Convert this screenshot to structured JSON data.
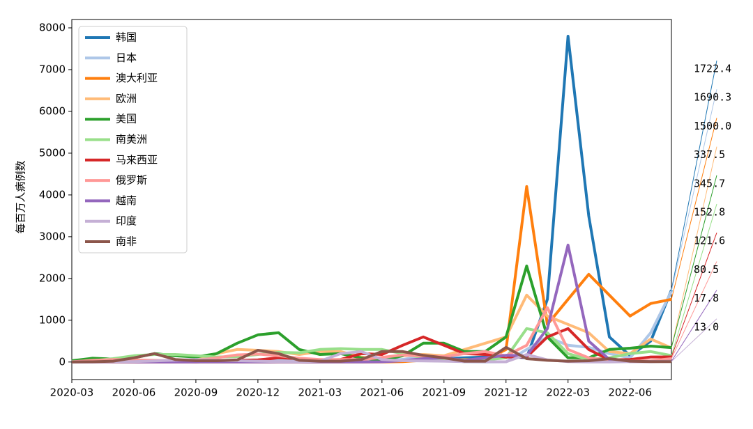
{
  "chart_data": {
    "type": "line",
    "y_label": "每百万人病例数",
    "x": [
      "2020-03",
      "2020-04",
      "2020-05",
      "2020-06",
      "2020-07",
      "2020-08",
      "2020-09",
      "2020-10",
      "2020-11",
      "2020-12",
      "2021-01",
      "2021-02",
      "2021-03",
      "2021-04",
      "2021-05",
      "2021-06",
      "2021-07",
      "2021-08",
      "2021-09",
      "2021-10",
      "2021-11",
      "2021-12",
      "2022-01",
      "2022-02",
      "2022-03",
      "2022-04",
      "2022-05",
      "2022-06",
      "2022-07",
      "2022-08"
    ],
    "xticks": [
      "2020-03",
      "2020-06",
      "2020-09",
      "2020-12",
      "2021-03",
      "2021-06",
      "2021-09",
      "2021-12",
      "2022-03",
      "2022-06"
    ],
    "ylim": [
      -420,
      8200
    ],
    "yticks": [
      0,
      1000,
      2000,
      3000,
      4000,
      5000,
      6000,
      7000,
      8000
    ],
    "legend": "upper left",
    "series": [
      {
        "name": "韩国",
        "color": "#1f77b4",
        "values": [
          30,
          10,
          5,
          5,
          5,
          5,
          10,
          10,
          20,
          40,
          30,
          20,
          20,
          30,
          30,
          30,
          60,
          70,
          80,
          100,
          120,
          130,
          100,
          1500,
          7800,
          3500,
          600,
          150,
          500,
          1722.4
        ],
        "end_label": {
          "value": 1722.4,
          "label": "1722.4"
        }
      },
      {
        "name": "日本",
        "color": "#aec7e8",
        "values": [
          2,
          10,
          5,
          2,
          15,
          25,
          10,
          10,
          20,
          30,
          40,
          15,
          10,
          25,
          40,
          10,
          60,
          150,
          60,
          5,
          2,
          5,
          300,
          600,
          400,
          350,
          200,
          100,
          700,
          1690.3
        ],
        "end_label": {
          "value": 1690.3,
          "label": "1690.3"
        }
      },
      {
        "name": "澳大利亚",
        "color": "#ff7f0e",
        "values": [
          10,
          5,
          1,
          1,
          10,
          15,
          2,
          1,
          1,
          1,
          1,
          1,
          1,
          1,
          1,
          2,
          10,
          40,
          50,
          60,
          50,
          300,
          4200,
          900,
          1500,
          2100,
          1600,
          1100,
          1400,
          1500
        ],
        "end_label": {
          "value": 1500,
          "label": "1500.0"
        }
      },
      {
        "name": "欧洲",
        "color": "#ffbb78",
        "values": [
          30,
          40,
          20,
          10,
          15,
          30,
          60,
          200,
          300,
          280,
          250,
          180,
          250,
          250,
          120,
          60,
          150,
          180,
          150,
          300,
          450,
          600,
          1600,
          1100,
          900,
          700,
          250,
          200,
          550,
          337.5
        ],
        "end_label": {
          "value": 337.5,
          "label": "337.5"
        }
      },
      {
        "name": "美国",
        "color": "#2ca02c",
        "values": [
          30,
          90,
          70,
          100,
          200,
          150,
          120,
          200,
          450,
          650,
          700,
          300,
          180,
          200,
          100,
          40,
          150,
          450,
          450,
          250,
          250,
          600,
          2300,
          600,
          100,
          100,
          300,
          330,
          380,
          345.7
        ],
        "end_label": {
          "value": 345.7,
          "label": "345.7"
        }
      },
      {
        "name": "南美洲",
        "color": "#98df8a",
        "values": [
          10,
          30,
          80,
          150,
          180,
          180,
          150,
          120,
          130,
          180,
          230,
          220,
          300,
          320,
          300,
          300,
          200,
          100,
          60,
          50,
          50,
          100,
          800,
          700,
          200,
          60,
          100,
          200,
          250,
          152.8
        ],
        "end_label": {
          "value": 152.8,
          "label": "152.8"
        }
      },
      {
        "name": "马来西亚",
        "color": "#d62728",
        "values": [
          5,
          3,
          2,
          1,
          1,
          1,
          2,
          20,
          40,
          50,
          100,
          80,
          40,
          60,
          200,
          180,
          400,
          600,
          400,
          200,
          180,
          120,
          120,
          600,
          800,
          300,
          50,
          60,
          120,
          121.6
        ],
        "end_label": {
          "value": 121.6,
          "label": "121.6"
        }
      },
      {
        "name": "俄罗斯",
        "color": "#ff9896",
        "values": [
          5,
          40,
          60,
          50,
          40,
          30,
          40,
          100,
          170,
          190,
          150,
          90,
          60,
          60,
          60,
          110,
          170,
          140,
          130,
          200,
          250,
          150,
          400,
          1300,
          300,
          100,
          40,
          20,
          30,
          80.5
        ],
        "end_label": {
          "value": 80.5,
          "label": "80.5"
        }
      },
      {
        "name": "越南",
        "color": "#9467bd",
        "values": [
          0,
          0,
          0,
          0,
          0,
          0,
          0,
          0,
          0,
          0,
          0,
          0,
          0,
          0,
          2,
          5,
          30,
          80,
          100,
          40,
          100,
          160,
          150,
          800,
          2800,
          500,
          60,
          10,
          10,
          17.8
        ],
        "end_label": {
          "value": 17.8,
          "label": "17.8"
        }
      },
      {
        "name": "印度",
        "color": "#c5b0d5",
        "values": [
          0,
          2,
          5,
          10,
          25,
          45,
          60,
          40,
          30,
          20,
          10,
          8,
          20,
          200,
          250,
          60,
          30,
          25,
          20,
          10,
          7,
          5,
          180,
          50,
          10,
          2,
          2,
          8,
          12,
          13.0
        ],
        "end_label": {
          "value": 13.0,
          "label": "13.0"
        }
      },
      {
        "name": "南非",
        "color": "#8c564b",
        "values": [
          0,
          5,
          20,
          100,
          200,
          60,
          30,
          30,
          50,
          280,
          200,
          40,
          20,
          20,
          60,
          250,
          250,
          160,
          100,
          20,
          20,
          350,
          80,
          40,
          20,
          30,
          80,
          20,
          10,
          10
        ]
      }
    ]
  }
}
